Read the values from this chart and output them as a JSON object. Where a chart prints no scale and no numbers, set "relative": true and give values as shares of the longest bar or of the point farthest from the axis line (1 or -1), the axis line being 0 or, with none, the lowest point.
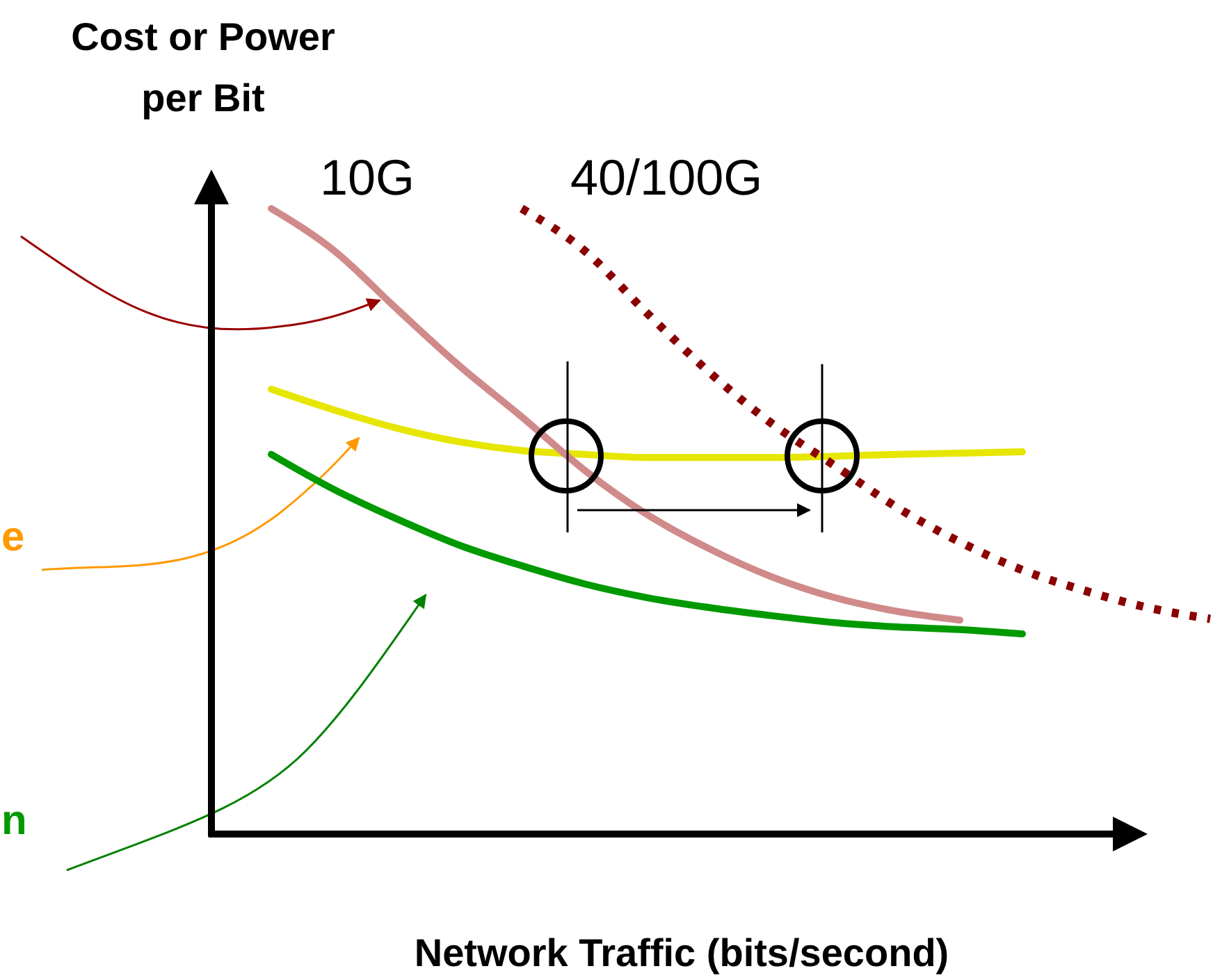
{
  "chart_data": {
    "type": "line",
    "relative": true,
    "ylabel": "Cost or Power per Bit",
    "xlabel": "Network Traffic (bits/second)",
    "categories": [
      null,
      null,
      null,
      null,
      null,
      null,
      null,
      null,
      null,
      null,
      null,
      null,
      null,
      null,
      null,
      null,
      null
    ],
    "series": [
      {
        "color": "#e6e600",
        "values": [
          null,
          0.711,
          0.678,
          0.649,
          0.627,
          0.613,
          0.607,
          0.602,
          0.602,
          0.602,
          0.604,
          0.607,
          0.609,
          0.611,
          null,
          null,
          null
        ]
      },
      {
        "color": "#009900",
        "values": [
          null,
          0.607,
          0.551,
          0.504,
          0.462,
          0.429,
          0.4,
          0.378,
          0.362,
          0.349,
          0.338,
          0.331,
          0.327,
          0.32,
          null,
          null,
          null
        ]
      },
      {
        "name": "10G",
        "color": "#d08a8a",
        "line_style": "solid",
        "values": [
          null,
          1,
          0.933,
          0.84,
          0.749,
          0.667,
          0.582,
          0.511,
          0.456,
          0.411,
          0.378,
          0.356,
          0.342,
          null,
          null,
          null,
          null
        ]
      },
      {
        "name": "40/100G",
        "color": "#8b0000",
        "line_style": "dotted",
        "values": [
          null,
          null,
          null,
          null,
          null,
          1,
          0.933,
          0.833,
          0.738,
          0.656,
          0.589,
          0.522,
          0.467,
          0.422,
          0.389,
          0.362,
          0.344
        ]
      }
    ],
    "annotations": [
      "e",
      "n"
    ]
  }
}
